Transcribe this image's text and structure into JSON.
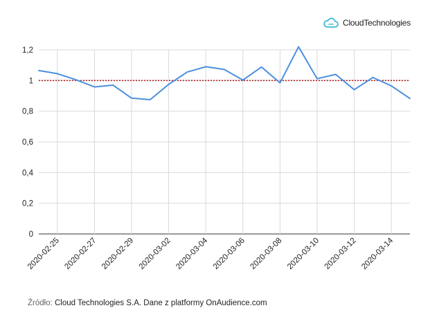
{
  "brand": {
    "name": "CloudTechnologies",
    "icon": "cloud-icon",
    "accent": "#3bb8d8"
  },
  "source": {
    "label": "Źródło:",
    "text": "Cloud Technologies S.A. Dane z platformy OnAudience.com"
  },
  "chart_data": {
    "type": "line",
    "title": "",
    "xlabel": "",
    "ylabel": "",
    "x": [
      "2020-02-24",
      "2020-02-25",
      "2020-02-26",
      "2020-02-27",
      "2020-02-28",
      "2020-02-29",
      "2020-03-01",
      "2020-03-02",
      "2020-03-03",
      "2020-03-04",
      "2020-03-05",
      "2020-03-06",
      "2020-03-07",
      "2020-03-08",
      "2020-03-09",
      "2020-03-10",
      "2020-03-11",
      "2020-03-12",
      "2020-03-13",
      "2020-03-14",
      "2020-03-15"
    ],
    "x_tick_labels": [
      "2020-02-25",
      "2020-02-27",
      "2020-02-29",
      "2020-03-02",
      "2020-03-04",
      "2020-03-06",
      "2020-03-08",
      "2020-03-10",
      "2020-03-12",
      "2020-03-14"
    ],
    "y_tick_labels": [
      "0",
      "0,2",
      "0,4",
      "0,6",
      "0,8",
      "1",
      "1,2"
    ],
    "ylim": [
      0,
      1.2
    ],
    "series": [
      {
        "values": [
          1.065,
          1.045,
          1.005,
          0.958,
          0.97,
          0.885,
          0.875,
          0.975,
          1.055,
          1.09,
          1.072,
          1.003,
          1.088,
          0.985,
          1.22,
          1.012,
          1.04,
          0.94,
          1.02,
          0.965,
          0.883
        ],
        "color": "#4a8fdf"
      }
    ],
    "reference_line": {
      "y": 1,
      "color": "#b22222",
      "style": "dotted"
    },
    "grid": true,
    "legend": "none"
  }
}
